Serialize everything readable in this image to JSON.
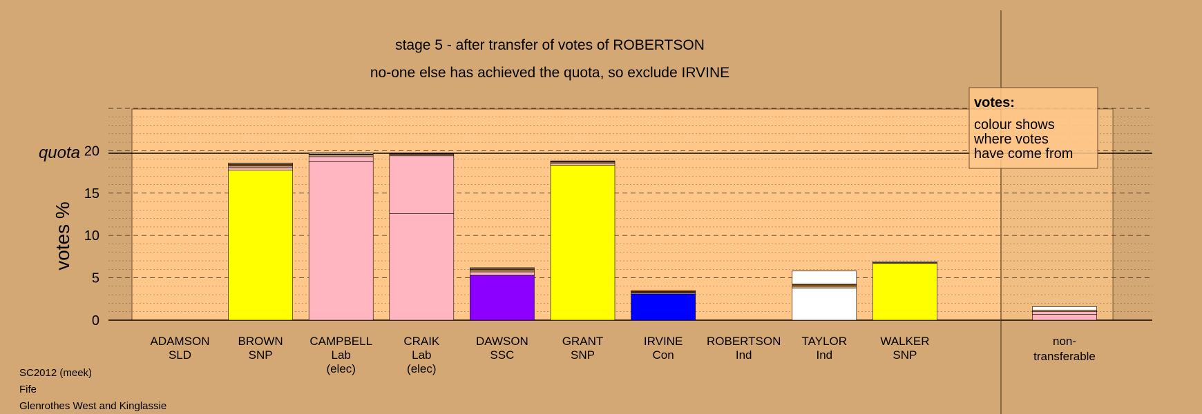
{
  "chart_data": {
    "type": "bar",
    "stacked": true,
    "title": "stage 5 - after transfer of votes of ROBERTSON",
    "subtitle": "no-one else has achieved the quota, so exclude IRVINE",
    "ylabel": "votes %",
    "ylim": [
      0,
      25
    ],
    "yticks": [
      0,
      5,
      10,
      15,
      20
    ],
    "quota": 19.7,
    "quota_label": "quota",
    "categories": [
      {
        "name": "ADAMSON",
        "party": "SLD",
        "note": ""
      },
      {
        "name": "BROWN",
        "party": "SNP",
        "note": ""
      },
      {
        "name": "CAMPBELL",
        "party": "Lab",
        "note": "(elec)"
      },
      {
        "name": "CRAIK",
        "party": "Lab",
        "note": "(elec)"
      },
      {
        "name": "DAWSON",
        "party": "SSC",
        "note": ""
      },
      {
        "name": "GRANT",
        "party": "SNP",
        "note": ""
      },
      {
        "name": "IRVINE",
        "party": "Con",
        "note": ""
      },
      {
        "name": "ROBERTSON",
        "party": "Ind",
        "note": ""
      },
      {
        "name": "TAYLOR",
        "party": "Ind",
        "note": ""
      },
      {
        "name": "WALKER",
        "party": "SNP",
        "note": ""
      }
    ],
    "nontransferable_label": [
      "non-",
      "transferable"
    ],
    "stacks": [
      [],
      [
        {
          "color": "#ffff00",
          "value": 17.7
        },
        {
          "color": "#ffb6c1",
          "value": 0.3
        },
        {
          "color": "#d4a874",
          "value": 0.2
        },
        {
          "color": "#8b4513",
          "value": 0.15
        },
        {
          "color": "#ff8c00",
          "value": 0.1
        },
        {
          "color": "#ffffff",
          "value": 0.1
        }
      ],
      [
        {
          "color": "#ffb6c1",
          "value": 18.7
        },
        {
          "color": "#ffb6c1",
          "value": 0.6
        },
        {
          "color": "#d4a874",
          "value": 0.2
        },
        {
          "color": "#8b4513",
          "value": 0.1
        },
        {
          "color": "#ffffff",
          "value": 0.1
        }
      ],
      [
        {
          "color": "#ffb6c1",
          "value": 12.6
        },
        {
          "color": "#ffb6c1",
          "value": 6.8
        },
        {
          "color": "#d4a874",
          "value": 0.15
        },
        {
          "color": "#8b4513",
          "value": 0.1
        },
        {
          "color": "#ffffff",
          "value": 0.05
        }
      ],
      [
        {
          "color": "#8b00ff",
          "value": 5.3
        },
        {
          "color": "#ffb6c1",
          "value": 0.4
        },
        {
          "color": "#d4a874",
          "value": 0.2
        },
        {
          "color": "#ff8c00",
          "value": 0.1
        },
        {
          "color": "#8b4513",
          "value": 0.1
        },
        {
          "color": "#ffffff",
          "value": 0.1
        }
      ],
      [
        {
          "color": "#ffff00",
          "value": 18.3
        },
        {
          "color": "#ffb6c1",
          "value": 0.2
        },
        {
          "color": "#d4a874",
          "value": 0.15
        },
        {
          "color": "#8b4513",
          "value": 0.1
        },
        {
          "color": "#ffffff",
          "value": 0.05
        }
      ],
      [
        {
          "color": "#0000ff",
          "value": 3.1
        },
        {
          "color": "#ffb6c1",
          "value": 0.1
        },
        {
          "color": "#d4a874",
          "value": 0.1
        },
        {
          "color": "#8b4513",
          "value": 0.1
        },
        {
          "color": "#ff8c00",
          "value": 0.1
        }
      ],
      [],
      [
        {
          "color": "#ffffff",
          "value": 3.8
        },
        {
          "color": "#d4a874",
          "value": 0.2
        },
        {
          "color": "#ff8c00",
          "value": 0.15
        },
        {
          "color": "#8b4513",
          "value": 0.1
        },
        {
          "color": "#ffffff",
          "value": 1.55
        }
      ],
      [
        {
          "color": "#ffff00",
          "value": 6.7
        },
        {
          "color": "#8b4513",
          "value": 0.1
        },
        {
          "color": "#ffffff",
          "value": 0.1
        }
      ]
    ],
    "nontransferable": [
      {
        "color": "#ffb6c1",
        "value": 0.7
      },
      {
        "color": "#ffb6c1",
        "value": 0.3
      },
      {
        "color": "#d4a874",
        "value": 0.2
      },
      {
        "color": "#ffffff",
        "value": 0.4
      }
    ],
    "legend": {
      "title": "votes:",
      "lines": [
        "colour shows",
        "where votes",
        "have come from"
      ]
    },
    "footer": [
      "SC2012 (meek)",
      "Fife",
      "Glenrothes West and Kinglassie"
    ],
    "colors": {
      "background": "#d4a874",
      "plot_fill": "#ffc88a",
      "grid": "#000000"
    }
  }
}
